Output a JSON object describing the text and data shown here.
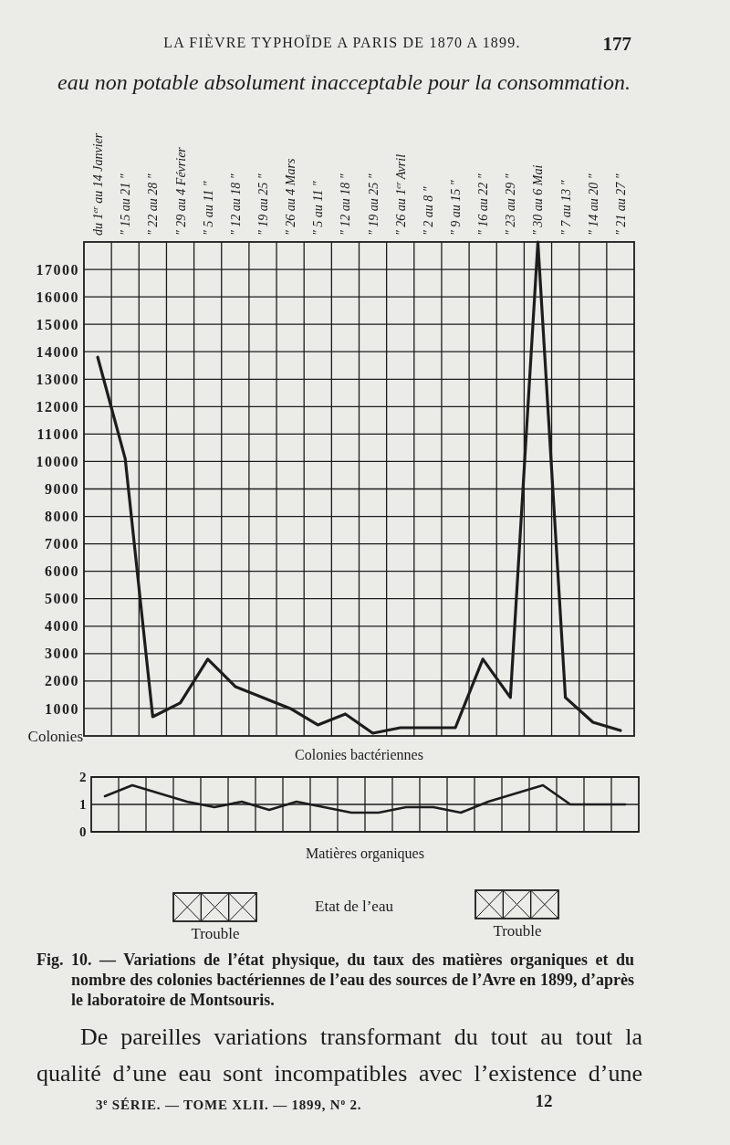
{
  "chart_data": [
    {
      "type": "line",
      "categories": [
        "du 1$^{er}$ au 14 Janvier",
        "″ 15 au 21 ″",
        "″ 22 au 28 ″",
        "″ 29 au 4 Février",
        "″ 5 au 11 ″",
        "″ 12 au 18 ″",
        "″ 19 au 25 ″",
        "″ 26 au 4 Mars",
        "″ 5 au 11 ″",
        "″ 12 au 18 ″",
        "″ 19 au 25 ″",
        "″ 26 au 1$^{er}$ Avril",
        "″ 2 au 8 ″",
        "″ 9 au 15 ″",
        "″ 16 au 22 ″",
        "″ 23 au 29 ″",
        "″ 30 au 6 Mai",
        "″ 7 au 13 ″",
        "″ 14 au 20 ″",
        "″ 21 au 27 ″"
      ],
      "values": [
        13800,
        10100,
        700,
        1200,
        2800,
        1800,
        1400,
        1000,
        400,
        800,
        100,
        300,
        300,
        300,
        2800,
        1400,
        18000,
        1400,
        500,
        200
      ],
      "color": "#1d1d1d",
      "ylim": [
        0,
        18000
      ],
      "yticks": [
        1000,
        2000,
        3000,
        4000,
        5000,
        6000,
        7000,
        8000,
        9000,
        10000,
        11000,
        12000,
        13000,
        14000,
        15000,
        16000,
        17000
      ],
      "ylabel": "Colonies",
      "xlabel": "Colonies bactériennes",
      "grid": true,
      "annotations": [
        "LA FIÈVRE TYPHOÏDE A PARIS DE 1870 A 1899.",
        "177",
        "eau non potable absolument inacceptable pour la consommation.",
        "Fig. 10. — Variations de l’état physique, du taux des matières organiques et du nombre des colonies bactériennes de l’eau des sources de l’Avre en 1899, d’après le laboratoire de Montsouris.",
        "De pareilles variations transformant du tout au tout la qualité d’une eau sont incompatibles avec l’existence d’une",
        "3$^{e}$ SÉRIE. — TOME XLII. — 1899, N$^{o}$ 2.",
        "12",
        "Etat de l’eau",
        "Trouble",
        "Trouble"
      ]
    },
    {
      "type": "line",
      "categories": [
        null,
        null,
        null,
        null,
        null,
        null,
        null,
        null,
        null,
        null,
        null,
        null,
        null,
        null,
        null,
        null,
        null,
        null,
        null,
        null
      ],
      "values": [
        1.3,
        1.7,
        1.4,
        1.1,
        0.9,
        1.1,
        0.8,
        1.1,
        0.9,
        0.7,
        0.7,
        0.9,
        0.9,
        0.7,
        1.1,
        1.4,
        1.7,
        1.0,
        1.0,
        1.0
      ],
      "color": "#1d1d1d",
      "ylim": [
        0,
        2
      ],
      "yticks": [
        0,
        1,
        2
      ],
      "xlabel": "Matières organiques",
      "grid": true
    }
  ]
}
